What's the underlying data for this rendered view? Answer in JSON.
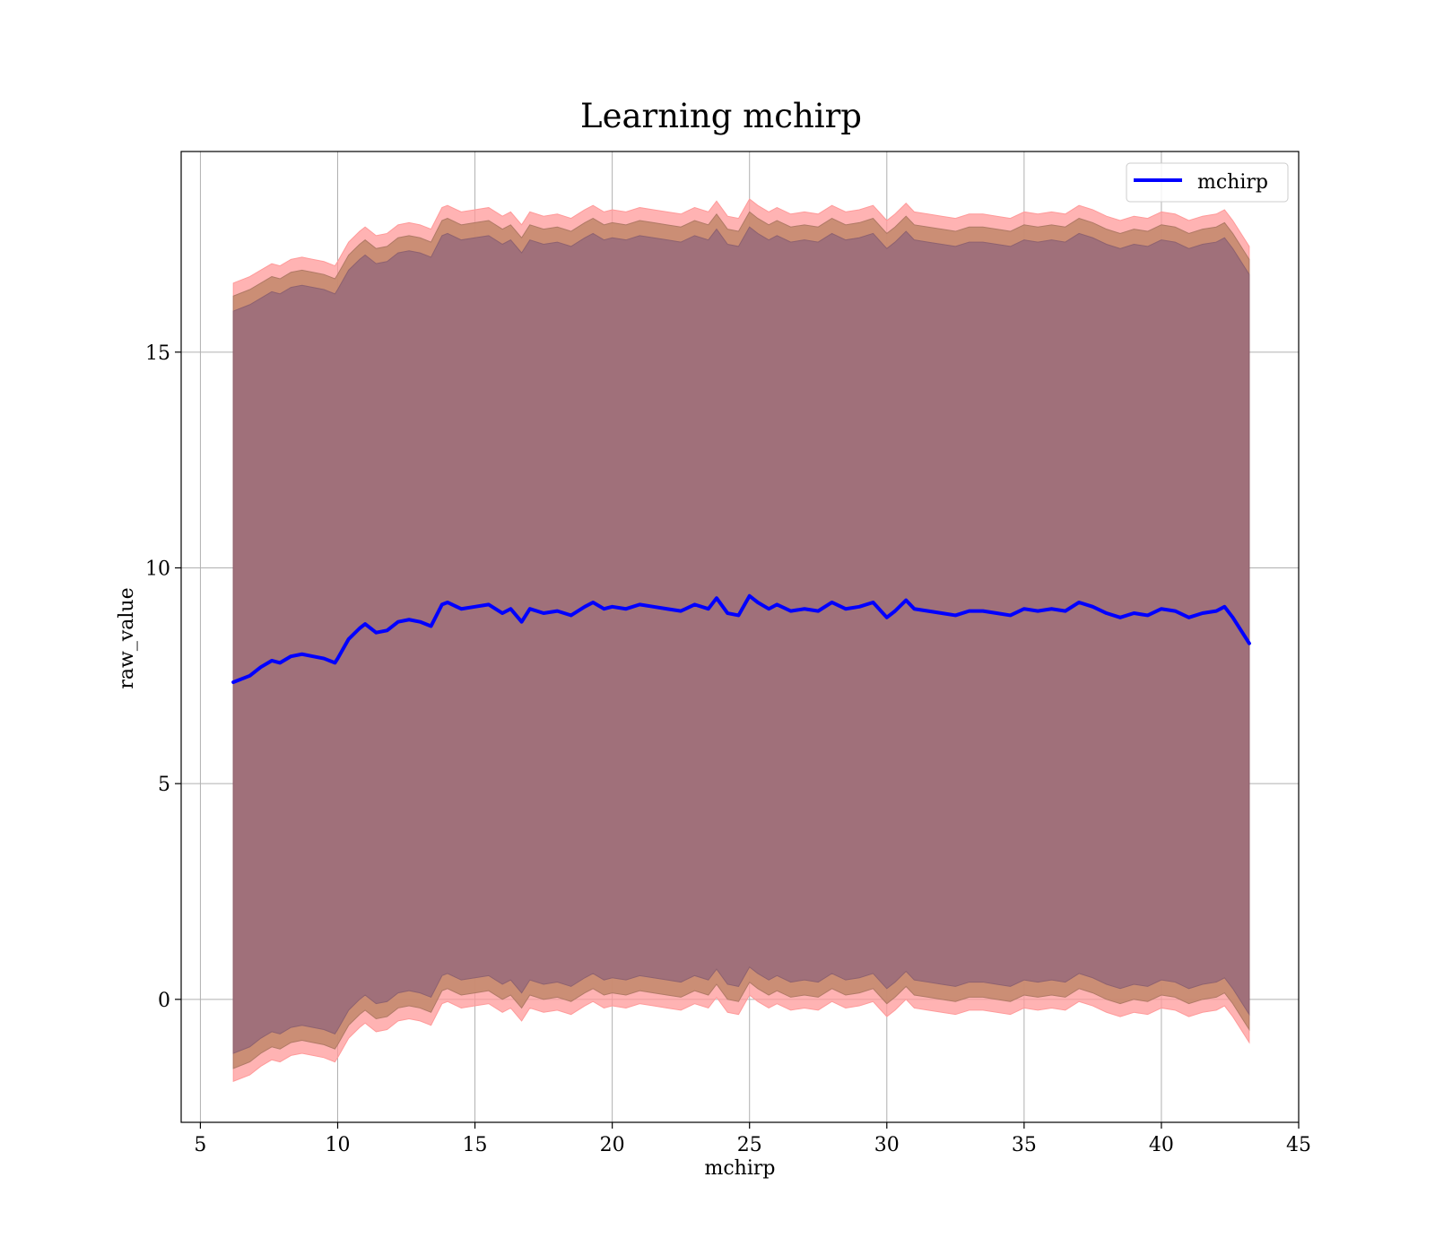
{
  "chart_data": {
    "type": "line",
    "title": "Learning mchirp",
    "xlabel": "mchirp",
    "ylabel": "raw_value",
    "xlim": [
      4.3,
      45
    ],
    "ylim": [
      -2.85,
      19.65
    ],
    "xticks": [
      5,
      10,
      15,
      20,
      25,
      30,
      35,
      40,
      45
    ],
    "yticks": [
      0,
      5,
      10,
      15
    ],
    "grid": true,
    "legend_position": "top-right",
    "colors": {
      "line": "#0000ff",
      "outer_band": "#ff9a9a",
      "middle_band": "#c58a6e",
      "inner_band": "#a0707a",
      "grid": "#b0b0b0"
    },
    "series": [
      {
        "name": "mchirp",
        "type": "line",
        "x": [
          6.2,
          6.8,
          7.2,
          7.6,
          7.9,
          8.3,
          8.7,
          9.1,
          9.5,
          9.9,
          10.0,
          10.4,
          10.8,
          11.0,
          11.4,
          11.8,
          12.2,
          12.6,
          13.0,
          13.4,
          13.8,
          14.0,
          14.5,
          15.0,
          15.5,
          16.0,
          16.3,
          16.7,
          17.0,
          17.5,
          18.0,
          18.5,
          19.0,
          19.3,
          19.7,
          20.0,
          20.5,
          21.0,
          21.5,
          22.0,
          22.5,
          23.0,
          23.5,
          23.8,
          24.2,
          24.6,
          25.0,
          25.3,
          25.7,
          26.0,
          26.5,
          27.0,
          27.5,
          28.0,
          28.5,
          29.0,
          29.5,
          30.0,
          30.3,
          30.7,
          31.0,
          31.5,
          32.0,
          32.5,
          33.0,
          33.5,
          34.0,
          34.5,
          35.0,
          35.5,
          36.0,
          36.5,
          37.0,
          37.5,
          38.0,
          38.5,
          39.0,
          39.5,
          40.0,
          40.5,
          41.0,
          41.5,
          42.0,
          42.3,
          42.6,
          43.2
        ],
        "mean": [
          7.35,
          7.5,
          7.7,
          7.85,
          7.8,
          7.95,
          8.0,
          7.95,
          7.9,
          7.8,
          7.9,
          8.35,
          8.6,
          8.7,
          8.5,
          8.55,
          8.75,
          8.8,
          8.75,
          8.65,
          9.15,
          9.2,
          9.05,
          9.1,
          9.15,
          8.95,
          9.05,
          8.75,
          9.05,
          8.95,
          9.0,
          8.9,
          9.1,
          9.2,
          9.05,
          9.1,
          9.05,
          9.15,
          9.1,
          9.05,
          9.0,
          9.15,
          9.05,
          9.3,
          8.95,
          8.9,
          9.35,
          9.2,
          9.05,
          9.15,
          9.0,
          9.05,
          9.0,
          9.2,
          9.05,
          9.1,
          9.2,
          8.85,
          9.0,
          9.25,
          9.05,
          9.0,
          8.95,
          8.9,
          9.0,
          9.0,
          8.95,
          8.9,
          9.05,
          9.0,
          9.05,
          9.0,
          9.2,
          9.1,
          8.95,
          8.85,
          8.95,
          8.9,
          9.05,
          9.0,
          8.85,
          8.95,
          9.0,
          9.1,
          8.85,
          8.25
        ],
        "inner_upper": [
          15.95,
          16.1,
          16.25,
          16.4,
          16.35,
          16.5,
          16.55,
          16.5,
          16.45,
          16.35,
          16.45,
          16.9,
          17.15,
          17.25,
          17.05,
          17.1,
          17.3,
          17.35,
          17.3,
          17.2,
          17.7,
          17.75,
          17.6,
          17.65,
          17.7,
          17.5,
          17.6,
          17.3,
          17.6,
          17.5,
          17.55,
          17.45,
          17.65,
          17.75,
          17.6,
          17.65,
          17.6,
          17.7,
          17.65,
          17.6,
          17.55,
          17.7,
          17.6,
          17.85,
          17.5,
          17.45,
          17.9,
          17.75,
          17.6,
          17.7,
          17.55,
          17.6,
          17.55,
          17.75,
          17.6,
          17.65,
          17.75,
          17.4,
          17.55,
          17.8,
          17.6,
          17.55,
          17.5,
          17.45,
          17.55,
          17.55,
          17.5,
          17.45,
          17.6,
          17.55,
          17.6,
          17.55,
          17.75,
          17.65,
          17.5,
          17.4,
          17.5,
          17.45,
          17.6,
          17.55,
          17.4,
          17.5,
          17.55,
          17.65,
          17.4,
          16.8
        ],
        "inner_lower": [
          -1.25,
          -1.1,
          -0.9,
          -0.75,
          -0.8,
          -0.65,
          -0.6,
          -0.65,
          -0.7,
          -0.8,
          -0.7,
          -0.25,
          0.0,
          0.1,
          -0.1,
          -0.05,
          0.15,
          0.2,
          0.15,
          0.05,
          0.55,
          0.6,
          0.45,
          0.5,
          0.55,
          0.35,
          0.45,
          0.15,
          0.45,
          0.35,
          0.4,
          0.3,
          0.5,
          0.6,
          0.45,
          0.5,
          0.45,
          0.55,
          0.5,
          0.45,
          0.4,
          0.55,
          0.45,
          0.7,
          0.35,
          0.3,
          0.75,
          0.6,
          0.45,
          0.55,
          0.4,
          0.45,
          0.4,
          0.6,
          0.45,
          0.5,
          0.6,
          0.25,
          0.4,
          0.65,
          0.45,
          0.4,
          0.35,
          0.3,
          0.4,
          0.4,
          0.35,
          0.3,
          0.45,
          0.4,
          0.45,
          0.4,
          0.6,
          0.5,
          0.35,
          0.25,
          0.35,
          0.3,
          0.45,
          0.4,
          0.25,
          0.35,
          0.4,
          0.5,
          0.25,
          -0.35
        ],
        "middle_upper": [
          16.3,
          16.45,
          16.6,
          16.75,
          16.7,
          16.85,
          16.9,
          16.85,
          16.8,
          16.7,
          16.8,
          17.25,
          17.5,
          17.6,
          17.4,
          17.45,
          17.65,
          17.7,
          17.65,
          17.55,
          18.05,
          18.1,
          17.95,
          18.0,
          18.05,
          17.85,
          17.95,
          17.65,
          17.95,
          17.85,
          17.9,
          17.8,
          18.0,
          18.1,
          17.95,
          18.0,
          17.95,
          18.05,
          18.0,
          17.95,
          17.9,
          18.05,
          17.95,
          18.2,
          17.85,
          17.8,
          18.25,
          18.1,
          17.95,
          18.05,
          17.9,
          17.95,
          17.9,
          18.1,
          17.95,
          18.0,
          18.1,
          17.75,
          17.9,
          18.15,
          17.95,
          17.9,
          17.85,
          17.8,
          17.9,
          17.9,
          17.85,
          17.8,
          17.95,
          17.9,
          17.95,
          17.9,
          18.1,
          18.0,
          17.85,
          17.75,
          17.85,
          17.8,
          17.95,
          17.9,
          17.75,
          17.85,
          17.9,
          18.0,
          17.75,
          17.15
        ],
        "middle_lower": [
          -1.6,
          -1.45,
          -1.25,
          -1.1,
          -1.15,
          -1.0,
          -0.95,
          -1.0,
          -1.05,
          -1.15,
          -1.05,
          -0.6,
          -0.35,
          -0.25,
          -0.45,
          -0.4,
          -0.2,
          -0.15,
          -0.2,
          -0.3,
          0.2,
          0.25,
          0.1,
          0.15,
          0.2,
          0.0,
          0.1,
          -0.2,
          0.1,
          0.0,
          0.05,
          -0.05,
          0.15,
          0.25,
          0.1,
          0.15,
          0.1,
          0.2,
          0.15,
          0.1,
          0.05,
          0.2,
          0.1,
          0.35,
          0.0,
          -0.05,
          0.4,
          0.25,
          0.1,
          0.2,
          0.05,
          0.1,
          0.05,
          0.25,
          0.1,
          0.15,
          0.25,
          -0.1,
          0.05,
          0.3,
          0.1,
          0.05,
          0.0,
          -0.05,
          0.05,
          0.05,
          0.0,
          -0.05,
          0.1,
          0.05,
          0.1,
          0.05,
          0.25,
          0.15,
          0.0,
          -0.1,
          0.0,
          -0.05,
          0.1,
          0.05,
          -0.1,
          0.0,
          0.05,
          0.15,
          -0.1,
          -0.7
        ],
        "outer_upper": [
          16.6,
          16.75,
          16.9,
          17.05,
          17.0,
          17.15,
          17.2,
          17.15,
          17.1,
          17.0,
          17.1,
          17.55,
          17.8,
          17.9,
          17.7,
          17.75,
          17.95,
          18.0,
          17.95,
          17.85,
          18.35,
          18.4,
          18.25,
          18.3,
          18.35,
          18.15,
          18.25,
          17.95,
          18.25,
          18.15,
          18.2,
          18.1,
          18.3,
          18.4,
          18.25,
          18.3,
          18.25,
          18.35,
          18.3,
          18.25,
          18.2,
          18.35,
          18.25,
          18.5,
          18.15,
          18.1,
          18.55,
          18.4,
          18.25,
          18.35,
          18.2,
          18.25,
          18.2,
          18.4,
          18.25,
          18.3,
          18.4,
          18.05,
          18.2,
          18.45,
          18.25,
          18.2,
          18.15,
          18.1,
          18.2,
          18.2,
          18.15,
          18.1,
          18.25,
          18.2,
          18.25,
          18.2,
          18.4,
          18.3,
          18.15,
          18.05,
          18.15,
          18.1,
          18.25,
          18.2,
          18.05,
          18.15,
          18.2,
          18.3,
          18.05,
          17.45
        ],
        "outer_lower": [
          -1.9,
          -1.75,
          -1.55,
          -1.4,
          -1.45,
          -1.3,
          -1.25,
          -1.3,
          -1.35,
          -1.45,
          -1.35,
          -0.9,
          -0.65,
          -0.55,
          -0.75,
          -0.7,
          -0.5,
          -0.45,
          -0.5,
          -0.6,
          -0.1,
          -0.05,
          -0.2,
          -0.15,
          -0.1,
          -0.3,
          -0.2,
          -0.5,
          -0.2,
          -0.3,
          -0.25,
          -0.35,
          -0.15,
          -0.05,
          -0.2,
          -0.15,
          -0.2,
          -0.1,
          -0.15,
          -0.2,
          -0.25,
          -0.1,
          -0.2,
          0.05,
          -0.3,
          -0.35,
          0.1,
          -0.05,
          -0.2,
          -0.1,
          -0.25,
          -0.2,
          -0.25,
          -0.05,
          -0.2,
          -0.15,
          -0.05,
          -0.4,
          -0.25,
          0.0,
          -0.2,
          -0.25,
          -0.3,
          -0.35,
          -0.25,
          -0.25,
          -0.3,
          -0.35,
          -0.2,
          -0.25,
          -0.2,
          -0.25,
          -0.05,
          -0.15,
          -0.3,
          -0.4,
          -0.3,
          -0.35,
          -0.2,
          -0.25,
          -0.4,
          -0.3,
          -0.25,
          -0.15,
          -0.4,
          -1.0
        ]
      }
    ]
  }
}
